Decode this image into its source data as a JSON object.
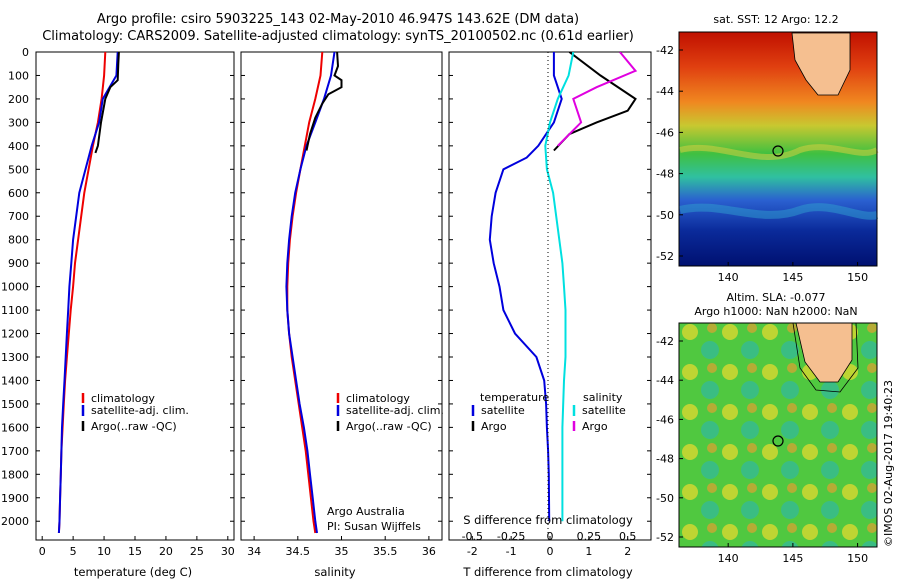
{
  "header": {
    "line1": "Argo profile: csiro 5903225_143 02-May-2010 46.947S 143.62E (DM data)",
    "line2": "Climatology: CARS2009. Satellite-adjusted climatology: synTS_20100502.nc (0.61d earlier)"
  },
  "colors": {
    "climatology": "#ee0000",
    "satellite_adj": "#0000dd",
    "argo": "#000000",
    "salinity_satellite": "#00e0e0",
    "salinity_argo": "#e000e0"
  },
  "depth_ticks": [
    "0",
    "100",
    "200",
    "300",
    "400",
    "500",
    "600",
    "700",
    "800",
    "900",
    "1000",
    "1100",
    "1200",
    "1300",
    "1400",
    "1500",
    "1600",
    "1700",
    "1800",
    "1900",
    "2000"
  ],
  "panels": {
    "temperature": {
      "xlabel": "temperature (deg C)",
      "ticks": [
        "0",
        "5",
        "10",
        "15",
        "20",
        "25",
        "30"
      ],
      "legend": [
        "climatology",
        "satellite-adj. clim.",
        "Argo(..raw -QC)"
      ]
    },
    "salinity": {
      "xlabel": "salinity",
      "ticks": [
        "34",
        "34.5",
        "35",
        "35.5",
        "36"
      ],
      "legend": [
        "climatology",
        "satellite-adj. clim.",
        "Argo(..raw -QC)"
      ],
      "note1": "Argo Australia",
      "note2": "PI: Susan Wijffels"
    },
    "difference": {
      "xlabel": "T difference from climatology",
      "toplabel": "S difference from climatology",
      "ticks_t": [
        "-2",
        "-1",
        "0",
        "1",
        "2"
      ],
      "ticks_s": [
        "-0.5",
        "-0.25",
        "0",
        "0.25",
        "0.5"
      ],
      "legend_t_title": "temperature",
      "legend_t": [
        "satellite",
        "Argo"
      ],
      "legend_s_title": "salinity",
      "legend_s": [
        "satellite",
        "Argo"
      ]
    }
  },
  "maps": {
    "sst": {
      "title": "sat. SST: 12 Argo: 12.2",
      "yticks": [
        "-42",
        "-44",
        "-46",
        "-48",
        "-50",
        "-52"
      ],
      "xticks": [
        "140",
        "145",
        "150"
      ]
    },
    "sla": {
      "title1": "Altim. SLA: -0.077",
      "title2": "Argo h1000: NaN h2000: NaN",
      "yticks": [
        "-42",
        "-44",
        "-46",
        "-48",
        "-50",
        "-52"
      ],
      "xticks": [
        "140",
        "145",
        "150"
      ]
    },
    "stamp": "©IMOS 02-Aug-2017 19:40:23"
  },
  "chart_data": [
    {
      "type": "line",
      "title": "",
      "xlabel": "temperature (deg C)",
      "ylabel": "",
      "xlim": [
        -1,
        31
      ],
      "ylim": [
        2080,
        0
      ],
      "series": [
        {
          "name": "climatology",
          "x": [
            10.2,
            10.0,
            9.6,
            9.0,
            8.2,
            7.5,
            6.8,
            6.3,
            5.8,
            5.3,
            5.0,
            4.6,
            4.3,
            4.0,
            3.7,
            3.5,
            3.3,
            3.1,
            3.0,
            2.9,
            2.8,
            2.7
          ],
          "y": [
            0,
            100,
            200,
            300,
            400,
            500,
            600,
            700,
            800,
            900,
            1000,
            1100,
            1200,
            1300,
            1400,
            1500,
            1600,
            1700,
            1800,
            1900,
            2000,
            2050
          ]
        },
        {
          "name": "satellite-adj. clim.",
          "x": [
            12.2,
            12.0,
            9.8,
            9.2,
            8.0,
            7.0,
            6.0,
            5.5,
            5.0,
            4.7,
            4.4,
            4.2,
            4.0,
            3.8,
            3.6,
            3.4,
            3.2,
            3.1,
            3.0,
            2.9,
            2.8,
            2.7
          ],
          "y": [
            0,
            100,
            200,
            300,
            400,
            500,
            600,
            700,
            800,
            900,
            1000,
            1100,
            1200,
            1300,
            1400,
            1500,
            1600,
            1700,
            1800,
            1900,
            2000,
            2050
          ]
        },
        {
          "name": "Argo(..raw -QC)",
          "x": [
            12.4,
            12.3,
            12.2,
            11.0,
            10.2,
            9.5,
            9.0,
            8.6
          ],
          "y": [
            0,
            50,
            120,
            150,
            200,
            300,
            400,
            430
          ]
        }
      ]
    },
    {
      "type": "line",
      "title": "",
      "xlabel": "salinity",
      "ylabel": "",
      "xlim": [
        33.85,
        36.15
      ],
      "ylim": [
        2080,
        0
      ],
      "series": [
        {
          "name": "climatology",
          "x": [
            34.78,
            34.76,
            34.7,
            34.63,
            34.58,
            34.53,
            34.48,
            34.44,
            34.41,
            34.39,
            34.38,
            34.38,
            34.4,
            34.43,
            34.47,
            34.51,
            34.55,
            34.59,
            34.62,
            34.65,
            34.68,
            34.7
          ],
          "y": [
            0,
            100,
            200,
            300,
            400,
            500,
            600,
            700,
            800,
            900,
            1000,
            1100,
            1200,
            1300,
            1400,
            1500,
            1600,
            1700,
            1800,
            1900,
            2000,
            2050
          ]
        },
        {
          "name": "satellite-adj. clim.",
          "x": [
            34.92,
            34.88,
            34.8,
            34.7,
            34.6,
            34.53,
            34.47,
            34.43,
            34.4,
            34.38,
            34.37,
            34.38,
            34.4,
            34.44,
            34.48,
            34.52,
            34.57,
            34.61,
            34.64,
            34.67,
            34.7,
            34.72
          ],
          "y": [
            0,
            100,
            200,
            300,
            400,
            500,
            600,
            700,
            800,
            900,
            1000,
            1100,
            1200,
            1300,
            1400,
            1500,
            1600,
            1700,
            1800,
            1900,
            2000,
            2050
          ]
        },
        {
          "name": "Argo(..raw -QC)",
          "x": [
            34.95,
            34.96,
            34.92,
            35.0,
            35.0,
            34.85,
            34.78,
            34.7,
            34.64,
            34.6
          ],
          "y": [
            0,
            60,
            100,
            120,
            150,
            180,
            220,
            280,
            350,
            420
          ]
        }
      ]
    },
    {
      "type": "line",
      "title": "",
      "xlabel": "T difference from climatology",
      "ylabel": "",
      "xlim": [
        -2.6,
        2.6
      ],
      "ylim": [
        2080,
        0
      ],
      "series": [
        {
          "name": "temperature satellite",
          "x": [
            0.1,
            0.1,
            0.3,
            0.1,
            -0.3,
            -0.6,
            -1.2,
            -1.4,
            -1.5,
            -1.55,
            -1.45,
            -1.3,
            -1.2,
            -0.9,
            -0.35,
            -0.15,
            -0.1,
            -0.08,
            -0.05,
            -0.03,
            -0.02
          ],
          "y": [
            0,
            100,
            200,
            300,
            400,
            450,
            500,
            600,
            700,
            800,
            900,
            1000,
            1100,
            1200,
            1300,
            1400,
            1500,
            1600,
            1700,
            1800,
            2000
          ]
        },
        {
          "name": "temperature Argo",
          "x": [
            0.5,
            1.3,
            2.2,
            2.0,
            1.2,
            0.5,
            0.1
          ],
          "y": [
            0,
            100,
            200,
            250,
            300,
            350,
            420
          ]
        },
        {
          "name": "salinity satellite",
          "x": [
            0.15,
            0.12,
            0.05,
            0.0,
            -0.03,
            -0.02,
            0.02,
            0.04,
            0.06,
            0.08,
            0.09,
            0.1,
            0.1,
            0.1,
            0.09,
            0.08,
            0.08,
            0.08
          ],
          "y": [
            0,
            100,
            200,
            300,
            400,
            500,
            600,
            700,
            800,
            900,
            1000,
            1100,
            1200,
            1300,
            1400,
            1600,
            1800,
            2000
          ]
        },
        {
          "name": "salinity Argo",
          "x": [
            0.45,
            0.55,
            0.3,
            0.15,
            0.2,
            0.05
          ],
          "y": [
            0,
            80,
            150,
            200,
            300,
            400
          ]
        }
      ]
    }
  ]
}
